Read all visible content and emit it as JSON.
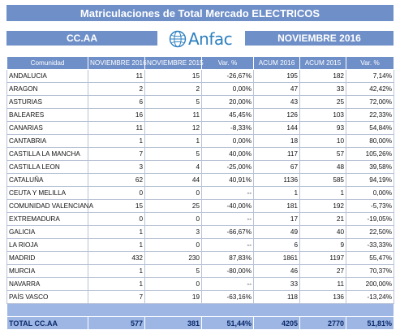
{
  "title": "Matriculaciones de Total Mercado ELECTRICOS",
  "header": {
    "left_label": "CC.AA",
    "right_label": "NOVIEMBRE 2016",
    "logo_text": "Anfac"
  },
  "columns": [
    "Comunidad",
    "NOVIEMBRE 2016",
    "NOVIEMBRE 2015",
    "Var. %",
    "ACUM 2016",
    "ACUM 2015",
    "Var. %"
  ],
  "rows": [
    {
      "name": "ANDALUCIA",
      "nov16": "11",
      "nov15": "15",
      "var": "-26,67%",
      "acum16": "195",
      "acum15": "182",
      "var_acum": "7,14%"
    },
    {
      "name": "ARAGON",
      "nov16": "2",
      "nov15": "2",
      "var": "0,00%",
      "acum16": "47",
      "acum15": "33",
      "var_acum": "42,42%"
    },
    {
      "name": "ASTURIAS",
      "nov16": "6",
      "nov15": "5",
      "var": "20,00%",
      "acum16": "43",
      "acum15": "25",
      "var_acum": "72,00%"
    },
    {
      "name": "BALEARES",
      "nov16": "16",
      "nov15": "11",
      "var": "45,45%",
      "acum16": "126",
      "acum15": "103",
      "var_acum": "22,33%"
    },
    {
      "name": "CANARIAS",
      "nov16": "11",
      "nov15": "12",
      "var": "-8,33%",
      "acum16": "144",
      "acum15": "93",
      "var_acum": "54,84%"
    },
    {
      "name": "CANTABRIA",
      "nov16": "1",
      "nov15": "1",
      "var": "0,00%",
      "acum16": "18",
      "acum15": "10",
      "var_acum": "80,00%"
    },
    {
      "name": "CASTILLA LA MANCHA",
      "nov16": "7",
      "nov15": "5",
      "var": "40,00%",
      "acum16": "117",
      "acum15": "57",
      "var_acum": "105,26%"
    },
    {
      "name": "CASTILLA LEON",
      "nov16": "3",
      "nov15": "4",
      "var": "-25,00%",
      "acum16": "67",
      "acum15": "48",
      "var_acum": "39,58%"
    },
    {
      "name": "CATALUÑA",
      "nov16": "62",
      "nov15": "44",
      "var": "40,91%",
      "acum16": "1136",
      "acum15": "585",
      "var_acum": "94,19%"
    },
    {
      "name": "CEUTA Y MELILLA",
      "nov16": "0",
      "nov15": "0",
      "var": "--",
      "acum16": "1",
      "acum15": "1",
      "var_acum": "0,00%"
    },
    {
      "name": "COMUNIDAD VALENCIANA",
      "nov16": "15",
      "nov15": "25",
      "var": "-40,00%",
      "acum16": "181",
      "acum15": "192",
      "var_acum": "-5,73%"
    },
    {
      "name": "EXTREMADURA",
      "nov16": "0",
      "nov15": "0",
      "var": "--",
      "acum16": "17",
      "acum15": "21",
      "var_acum": "-19,05%"
    },
    {
      "name": "GALICIA",
      "nov16": "1",
      "nov15": "3",
      "var": "-66,67%",
      "acum16": "49",
      "acum15": "40",
      "var_acum": "22,50%"
    },
    {
      "name": "LA RIOJA",
      "nov16": "1",
      "nov15": "0",
      "var": "--",
      "acum16": "6",
      "acum15": "9",
      "var_acum": "-33,33%"
    },
    {
      "name": "MADRID",
      "nov16": "432",
      "nov15": "230",
      "var": "87,83%",
      "acum16": "1861",
      "acum15": "1197",
      "var_acum": "55,47%"
    },
    {
      "name": "MURCIA",
      "nov16": "1",
      "nov15": "5",
      "var": "-80,00%",
      "acum16": "46",
      "acum15": "27",
      "var_acum": "70,37%"
    },
    {
      "name": "NAVARRA",
      "nov16": "1",
      "nov15": "0",
      "var": "--",
      "acum16": "33",
      "acum15": "11",
      "var_acum": "200,00%"
    },
    {
      "name": "PAÍS VASCO",
      "nov16": "7",
      "nov15": "19",
      "var": "-63,16%",
      "acum16": "118",
      "acum15": "136",
      "var_acum": "-13,24%"
    }
  ],
  "total": {
    "name": "TOTAL CC.AA",
    "nov16": "577",
    "nov15": "381",
    "var": "51,44%",
    "acum16": "4205",
    "acum15": "2770",
    "var_acum": "51,81%"
  },
  "colors": {
    "header_blue": "#6f8fc8",
    "total_row": "#9db6e4",
    "logo_blue": "#2c7fc0"
  }
}
